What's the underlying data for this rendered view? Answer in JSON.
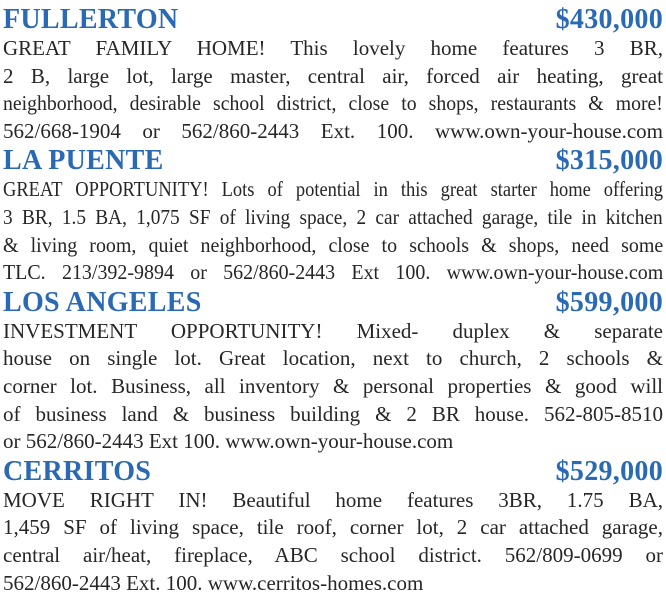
{
  "page": {
    "background_color": "#ffffff",
    "accent_color": "#2a6ab5",
    "text_color": "#262626"
  },
  "listings": [
    {
      "city": "FULLERTON",
      "price": "$430,000",
      "lines": [
        "GREAT FAMILY HOME! This lovely home features 3 BR,",
        "2 B, large lot, large master, central air, forced air heating, great",
        "neighborhood, desirable school district, close to shops, restaurants & more!",
        "562/668-1904 or 562/860-2443 Ext. 100. www.own-your-house.com"
      ]
    },
    {
      "city": "LA PUENTE",
      "price": "$315,000",
      "lines": [
        "GREAT OPPORTUNITY! Lots of potential in this great starter home offering",
        "3 BR, 1.5 BA, 1,075 SF of living space, 2 car attached garage, tile in kitchen",
        "& living room, quiet neighborhood, close to schools & shops, need some",
        "TLC. 213/392-9894 or 562/860-2443 Ext 100. www.own-your-house.com"
      ]
    },
    {
      "city": "LOS ANGELES",
      "price": "$599,000",
      "lines": [
        "INVESTMENT OPPORTUNITY! Mixed- duplex & separate",
        "house on single lot. Great location, next to church, 2 schools &",
        "corner lot. Business, all inventory & personal properties & good will",
        "of business land & business building & 2 BR house. 562-805-8510",
        "or 562/860-2443 Ext 100. www.own-your-house.com"
      ]
    },
    {
      "city": "CERRITOS",
      "price": "$529,000",
      "lines": [
        "MOVE RIGHT IN! Beautiful home features 3BR, 1.75 BA,",
        "1,459 SF of living space, tile roof, corner lot, 2 car attached garage,",
        "central air/heat, fireplace, ABC school district. 562/809-0699 or",
        "562/860-2443 Ext. 100. www.cerritos-homes.com"
      ]
    }
  ]
}
